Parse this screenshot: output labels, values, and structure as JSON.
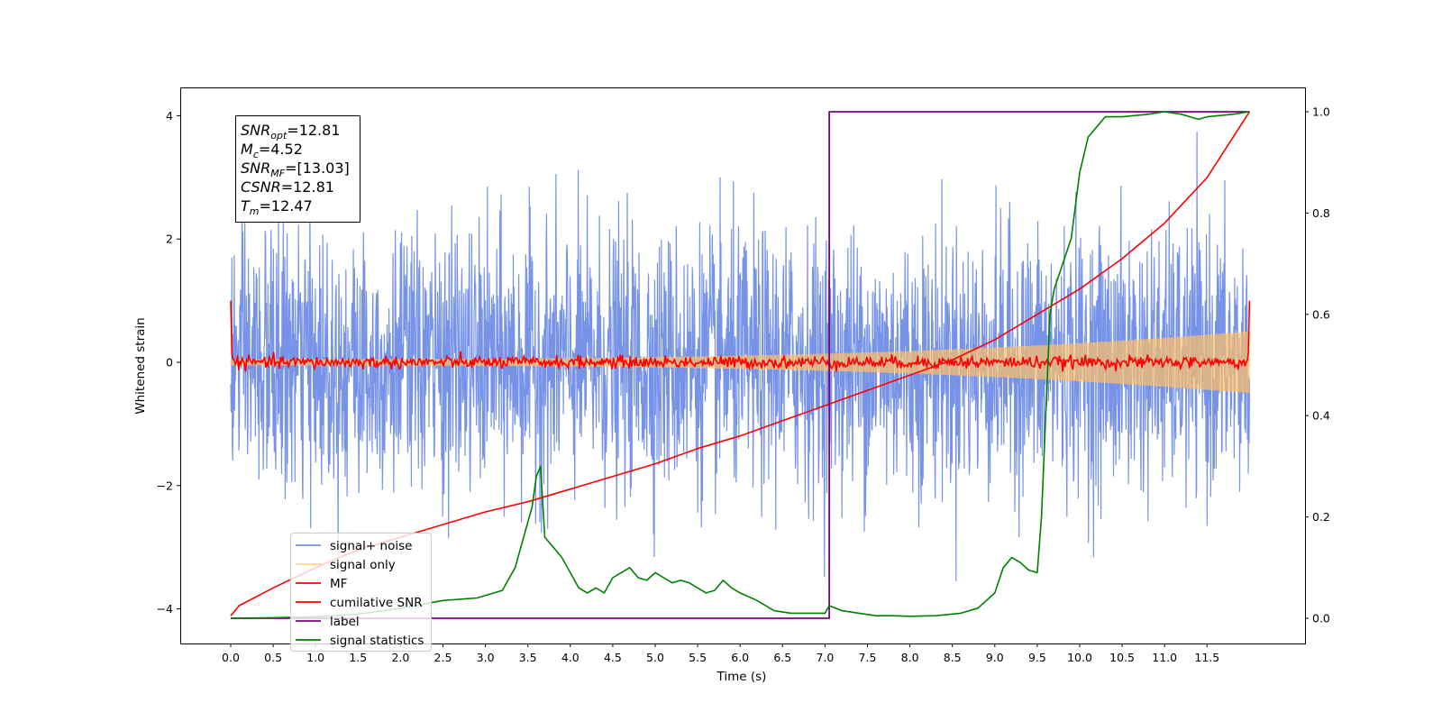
{
  "chart_data": {
    "type": "line",
    "xlabel": "Time (s)",
    "ylabel": "Whitened strain",
    "xlim": [
      -0.6,
      12.6
    ],
    "ylim": [
      -4.45,
      4.45
    ],
    "y2lim": [
      -0.05,
      1.05
    ],
    "x_ticks": [
      "0.0",
      "0.5",
      "1.0",
      "1.5",
      "2.0",
      "2.5",
      "3.0",
      "3.5",
      "4.0",
      "4.5",
      "5.0",
      "5.5",
      "6.0",
      "6.5",
      "7.0",
      "7.5",
      "8.0",
      "8.5",
      "9.0",
      "9.5",
      "10.0",
      "10.5",
      "11.0",
      "11.5"
    ],
    "y_ticks": [
      "4",
      "2",
      "0",
      "−2",
      "−4"
    ],
    "y2_ticks": [
      "1.0",
      "0.8",
      "0.6",
      "0.4",
      "0.2",
      "0.0"
    ],
    "grid": false,
    "legend_position": "lower left",
    "annotation": [
      {
        "sym": "SNR",
        "sub": "opt",
        "val": "=12.81"
      },
      {
        "sym": "M",
        "sub": "c",
        "val": "=4.52"
      },
      {
        "sym": "SNR",
        "sub": "MF",
        "val": "=[13.03]"
      },
      {
        "sym": "CSNR",
        "sub": "",
        "val": "=12.81"
      },
      {
        "sym": "T",
        "sub": "m",
        "val": "=12.47"
      }
    ],
    "series": [
      {
        "name": "signal+ noise",
        "color": "#6f8de6",
        "axis": "left",
        "description": "whitened noise, roughly unit variance, peaks near ±4",
        "x_range": [
          0.0,
          12.0
        ]
      },
      {
        "name": "signal only",
        "color": "#ffbf66",
        "axis": "left",
        "description": "chirp whose amplitude grows from ~0.05 to ~0.5 at the end",
        "x_range": [
          0.0,
          12.0
        ]
      },
      {
        "name": "MF",
        "color": "#ff0000",
        "axis": "left",
        "description": "matched filter output near 0, spike of 1 at both ends",
        "x_range": [
          0.0,
          12.0
        ]
      },
      {
        "name": "cumilative SNR",
        "color": "#ff0000",
        "axis": "right",
        "x": [
          0,
          0.1,
          0.5,
          1,
          1.5,
          2,
          2.5,
          3,
          3.5,
          4,
          4.5,
          5,
          5.5,
          6,
          6.5,
          7,
          7.5,
          8,
          8.5,
          9,
          9.5,
          10,
          10.5,
          11,
          11.5,
          12
        ],
        "y": [
          0.005,
          0.025,
          0.06,
          0.1,
          0.135,
          0.16,
          0.185,
          0.21,
          0.23,
          0.255,
          0.28,
          0.305,
          0.335,
          0.36,
          0.39,
          0.42,
          0.45,
          0.48,
          0.51,
          0.55,
          0.6,
          0.65,
          0.71,
          0.78,
          0.87,
          1.0
        ]
      },
      {
        "name": "label",
        "color": "#800080",
        "axis": "right",
        "x": [
          0,
          7.05,
          7.05,
          12.0
        ],
        "y": [
          0,
          0,
          1,
          1
        ]
      },
      {
        "name": "signal statistics",
        "color": "#008000",
        "axis": "right",
        "x": [
          0,
          0.5,
          1,
          1.5,
          2,
          2.5,
          2.9,
          3.2,
          3.35,
          3.45,
          3.55,
          3.6,
          3.65,
          3.7,
          3.8,
          3.9,
          4.0,
          4.1,
          4.2,
          4.3,
          4.4,
          4.5,
          4.6,
          4.7,
          4.8,
          4.9,
          5.0,
          5.1,
          5.2,
          5.3,
          5.4,
          5.5,
          5.6,
          5.7,
          5.8,
          5.9,
          6.0,
          6.2,
          6.4,
          6.6,
          6.8,
          7.0,
          7.05,
          7.2,
          7.4,
          7.6,
          7.8,
          8.0,
          8.3,
          8.6,
          8.8,
          9.0,
          9.1,
          9.2,
          9.3,
          9.4,
          9.5,
          9.55,
          9.6,
          9.65,
          9.7,
          9.8,
          9.9,
          10.0,
          10.1,
          10.2,
          10.3,
          10.5,
          10.8,
          11.0,
          11.2,
          11.3,
          11.4,
          11.5,
          11.8,
          12.0
        ],
        "y": [
          0,
          0.001,
          0.003,
          0.008,
          0.02,
          0.035,
          0.04,
          0.055,
          0.1,
          0.16,
          0.22,
          0.28,
          0.3,
          0.16,
          0.14,
          0.12,
          0.09,
          0.06,
          0.05,
          0.06,
          0.05,
          0.08,
          0.09,
          0.1,
          0.08,
          0.075,
          0.09,
          0.08,
          0.07,
          0.075,
          0.07,
          0.06,
          0.05,
          0.055,
          0.075,
          0.06,
          0.05,
          0.035,
          0.015,
          0.01,
          0.01,
          0.01,
          0.025,
          0.015,
          0.01,
          0.005,
          0.005,
          0.004,
          0.005,
          0.01,
          0.02,
          0.05,
          0.1,
          0.12,
          0.11,
          0.095,
          0.09,
          0.2,
          0.4,
          0.6,
          0.65,
          0.7,
          0.75,
          0.88,
          0.95,
          0.97,
          0.99,
          0.99,
          0.995,
          1.0,
          0.995,
          0.99,
          0.985,
          0.99,
          0.995,
          1.0
        ]
      }
    ]
  }
}
